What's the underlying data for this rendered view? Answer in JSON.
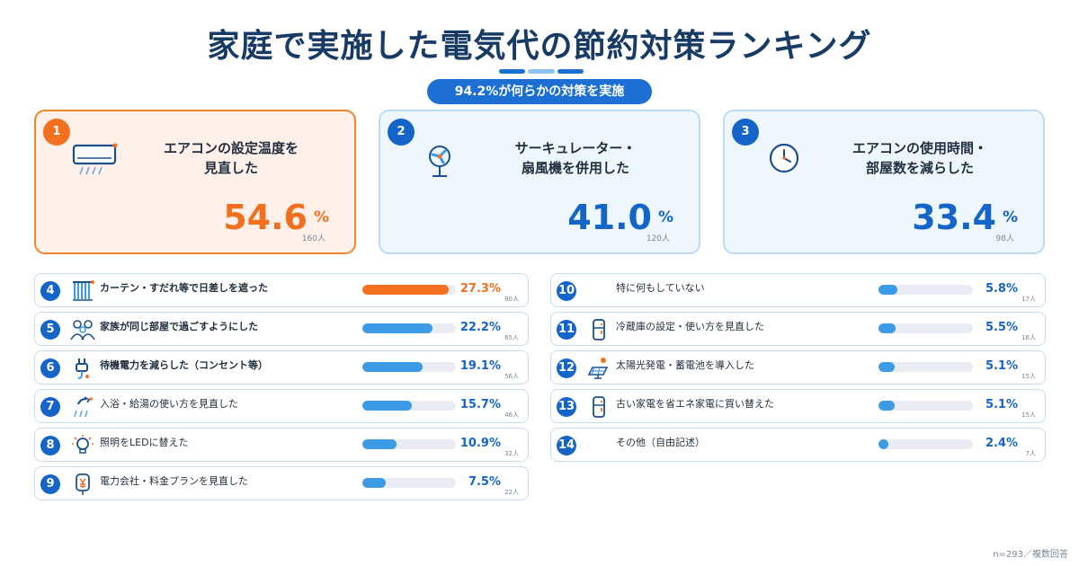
{
  "title": "家庭で実施した電気代の節約対策ランキング",
  "summary": "94.2%が何らかの対策を実施",
  "footnote": "n=293／複数回答",
  "colors": {
    "primary": "#1565c9",
    "accent": "#f37021",
    "bar": "#3d9be6",
    "track": "#e9edf3"
  },
  "chart_data": {
    "type": "bar",
    "title": "家庭で実施した電気代の節約対策ランキング",
    "unit": "%",
    "count_unit": "人",
    "top3": [
      {
        "rank": "1",
        "label_line1": "エアコンの設定温度を",
        "label_line2": "見直した",
        "value": 54.6,
        "value_text": "54.6",
        "count": "160人",
        "icon": "air-conditioner-icon"
      },
      {
        "rank": "2",
        "label_line1": "サーキュレーター・",
        "label_line2": "扇風機を併用した",
        "value": 41.0,
        "value_text": "41.0",
        "count": "120人",
        "icon": "fan-icon"
      },
      {
        "rank": "3",
        "label_line1": "エアコンの使用時間・",
        "label_line2": "部屋数を減らした",
        "value": 33.4,
        "value_text": "33.4",
        "count": "98人",
        "icon": "clock-icon"
      }
    ],
    "others": [
      {
        "rank": "4",
        "label": "カーテン・すだれ等で日差しを遮った",
        "value": 27.3,
        "value_text": "27.3%",
        "count": "80人",
        "icon": "curtain-icon"
      },
      {
        "rank": "5",
        "label": "家族が同じ部屋で過ごすようにした",
        "value": 22.2,
        "value_text": "22.2%",
        "count": "65人",
        "icon": "family-icon"
      },
      {
        "rank": "6",
        "label": "待機電力を減らした（コンセント等）",
        "value": 19.1,
        "value_text": "19.1%",
        "count": "56人",
        "icon": "plug-icon"
      },
      {
        "rank": "7",
        "label": "入浴・給湯の使い方を見直した",
        "value": 15.7,
        "value_text": "15.7%",
        "count": "46人",
        "icon": "shower-icon"
      },
      {
        "rank": "8",
        "label": "照明をLEDに替えた",
        "value": 10.9,
        "value_text": "10.9%",
        "count": "32人",
        "icon": "light-bulb-icon"
      },
      {
        "rank": "9",
        "label": "電力会社・料金プランを見直した",
        "value": 7.5,
        "value_text": "7.5%",
        "count": "22人",
        "icon": "yen-tag-icon"
      },
      {
        "rank": "10",
        "label": "特に何もしていない",
        "value": 5.8,
        "value_text": "5.8%",
        "count": "17人",
        "icon": ""
      },
      {
        "rank": "11",
        "label": "冷蔵庫の設定・使い方を見直した",
        "value": 5.5,
        "value_text": "5.5%",
        "count": "16人",
        "icon": "refrigerator-icon"
      },
      {
        "rank": "12",
        "label": "太陽光発電・蓄電池を導入した",
        "value": 5.1,
        "value_text": "5.1%",
        "count": "15人",
        "icon": "solar-panel-icon"
      },
      {
        "rank": "13",
        "label": "古い家電を省エネ家電に買い替えた",
        "value": 5.1,
        "value_text": "5.1%",
        "count": "15人",
        "icon": "appliance-icon"
      },
      {
        "rank": "14",
        "label": "その他（自由記述）",
        "value": 2.4,
        "value_text": "2.4%",
        "count": "7人",
        "icon": ""
      }
    ]
  }
}
